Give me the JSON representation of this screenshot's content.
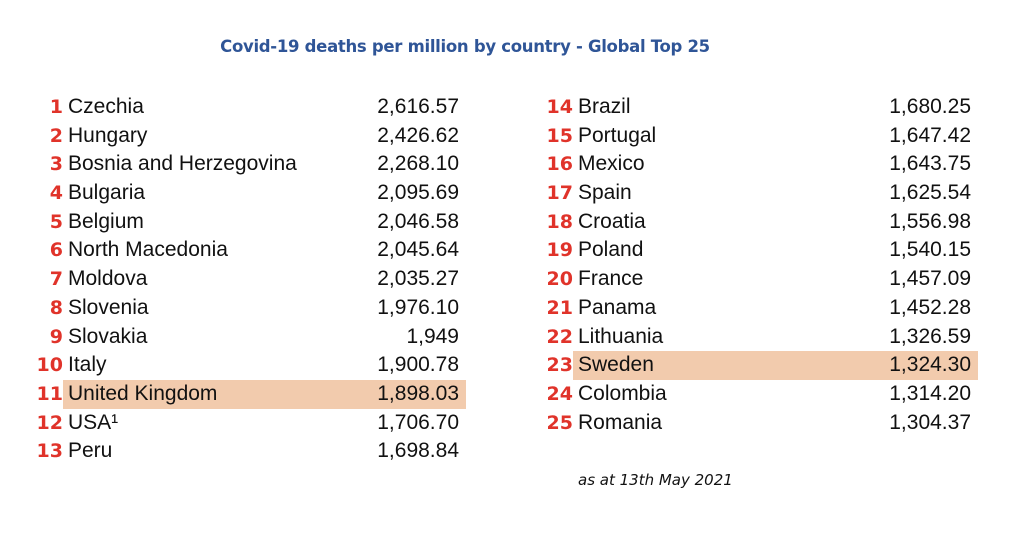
{
  "chart_data": {
    "type": "table",
    "title": "Covid-19 deaths per million by country - Global Top 25",
    "footnote": "as at 13th May 2021",
    "highlight_color": "#f2cbad",
    "rank_color": "#e0332a",
    "title_color": "#2f5597",
    "highlighted": [
      "United Kingdom",
      "Sweden"
    ],
    "rows": [
      {
        "rank": "1",
        "country": "Czechia",
        "value": "2,616.57"
      },
      {
        "rank": "2",
        "country": "Hungary",
        "value": "2,426.62"
      },
      {
        "rank": "3",
        "country": "Bosnia and Herzegovina",
        "value": "2,268.10"
      },
      {
        "rank": "4",
        "country": "Bulgaria",
        "value": "2,095.69"
      },
      {
        "rank": "5",
        "country": "Belgium",
        "value": "2,046.58"
      },
      {
        "rank": "6",
        "country": "North Macedonia",
        "value": "2,045.64"
      },
      {
        "rank": "7",
        "country": "Moldova",
        "value": "2,035.27"
      },
      {
        "rank": "8",
        "country": "Slovenia",
        "value": "1,976.10"
      },
      {
        "rank": "9",
        "country": "Slovakia",
        "value": "1,949"
      },
      {
        "rank": "10",
        "country": "Italy",
        "value": "1,900.78"
      },
      {
        "rank": "11",
        "country": "United Kingdom",
        "value": "1,898.03"
      },
      {
        "rank": "12",
        "country": "USA¹",
        "value": "1,706.70"
      },
      {
        "rank": "13",
        "country": "Peru",
        "value": "1,698.84"
      },
      {
        "rank": "14",
        "country": "Brazil",
        "value": "1,680.25"
      },
      {
        "rank": "15",
        "country": "Portugal",
        "value": "1,647.42"
      },
      {
        "rank": "16",
        "country": "Mexico",
        "value": "1,643.75"
      },
      {
        "rank": "17",
        "country": "Spain",
        "value": "1,625.54"
      },
      {
        "rank": "18",
        "country": "Croatia",
        "value": "1,556.98"
      },
      {
        "rank": "19",
        "country": "Poland",
        "value": "1,540.15"
      },
      {
        "rank": "20",
        "country": "France",
        "value": "1,457.09"
      },
      {
        "rank": "21",
        "country": "Panama",
        "value": "1,452.28"
      },
      {
        "rank": "22",
        "country": "Lithuania",
        "value": "1,326.59"
      },
      {
        "rank": "23",
        "country": "Sweden",
        "value": "1,324.30"
      },
      {
        "rank": "24",
        "country": "Colombia",
        "value": "1,314.20"
      },
      {
        "rank": "25",
        "country": "Romania",
        "value": "1,304.37"
      }
    ]
  }
}
